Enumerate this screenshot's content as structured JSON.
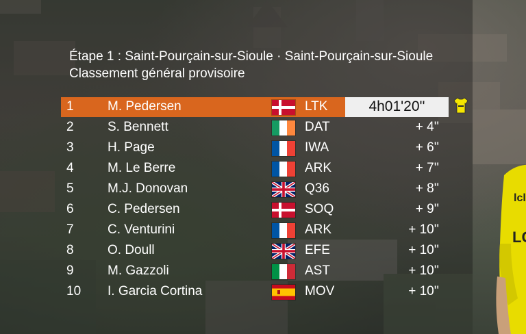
{
  "header": {
    "stage_line": "Étape 1 : Saint-Pourçain-sur-Sioule ·  Saint-Pourçain-sur-Sioule",
    "subtitle": "Classement général provisoire"
  },
  "leader_jersey_icon": "yellow-jersey-icon",
  "colors": {
    "leader_row": "#d9661e",
    "time_box": "#efefef",
    "jersey": "#f5e600"
  },
  "standings": [
    {
      "pos": "1",
      "name": "M. Pedersen",
      "flag": "denmark",
      "team": "LTK",
      "time": "4h01'20''"
    },
    {
      "pos": "2",
      "name": "S. Bennett",
      "flag": "ireland",
      "team": "DAT",
      "time": "+ 4''"
    },
    {
      "pos": "3",
      "name": "H. Page",
      "flag": "france",
      "team": "IWA",
      "time": "+ 6''"
    },
    {
      "pos": "4",
      "name": "M. Le Berre",
      "flag": "france",
      "team": "ARK",
      "time": "+ 7''"
    },
    {
      "pos": "5",
      "name": "M.J. Donovan",
      "flag": "united-kingdom",
      "team": "Q36",
      "time": "+ 8''"
    },
    {
      "pos": "6",
      "name": "C. Pedersen",
      "flag": "denmark",
      "team": "SOQ",
      "time": "+ 9''"
    },
    {
      "pos": "7",
      "name": "C. Venturini",
      "flag": "france",
      "team": "ARK",
      "time": "+ 10''"
    },
    {
      "pos": "8",
      "name": "O. Doull",
      "flag": "united-kingdom",
      "team": "EFE",
      "time": "+ 10''"
    },
    {
      "pos": "9",
      "name": "M. Gazzoli",
      "flag": "italy",
      "team": "AST",
      "time": "+ 10''"
    },
    {
      "pos": "10",
      "name": "I. Garcia Cortina",
      "flag": "spain",
      "team": "MOV",
      "time": "+ 10''"
    }
  ]
}
